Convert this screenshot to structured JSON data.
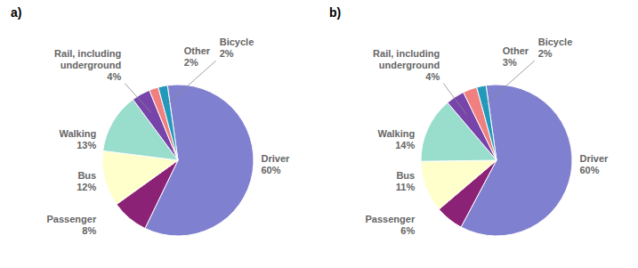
{
  "chart_data": [
    {
      "type": "pie",
      "title": "a)",
      "categories": [
        "Driver",
        "Passenger",
        "Bus",
        "Walking",
        "Rail, including\nunderground",
        "Other",
        "Bicycle"
      ],
      "values": [
        60,
        8,
        12,
        13,
        4,
        2,
        2
      ],
      "value_labels": [
        "60%",
        "8%",
        "12%",
        "13%",
        "4%",
        "2%",
        "2%"
      ],
      "colors": [
        "#8080d0",
        "#8b2275",
        "#ffffcc",
        "#99ddcc",
        "#7744aa",
        "#f08080",
        "#2299bb"
      ],
      "data_labels": true
    },
    {
      "type": "pie",
      "title": "b)",
      "categories": [
        "Driver",
        "Passenger",
        "Bus",
        "Walking",
        "Rail, including\nunderground",
        "Other",
        "Bicycle"
      ],
      "values": [
        60,
        6,
        11,
        14,
        4,
        3,
        2
      ],
      "value_labels": [
        "60%",
        "6%",
        "11%",
        "14%",
        "4%",
        "3%",
        "2%"
      ],
      "colors": [
        "#8080d0",
        "#8b2275",
        "#ffffcc",
        "#99ddcc",
        "#7744aa",
        "#f08080",
        "#2299bb"
      ],
      "data_labels": true
    }
  ]
}
